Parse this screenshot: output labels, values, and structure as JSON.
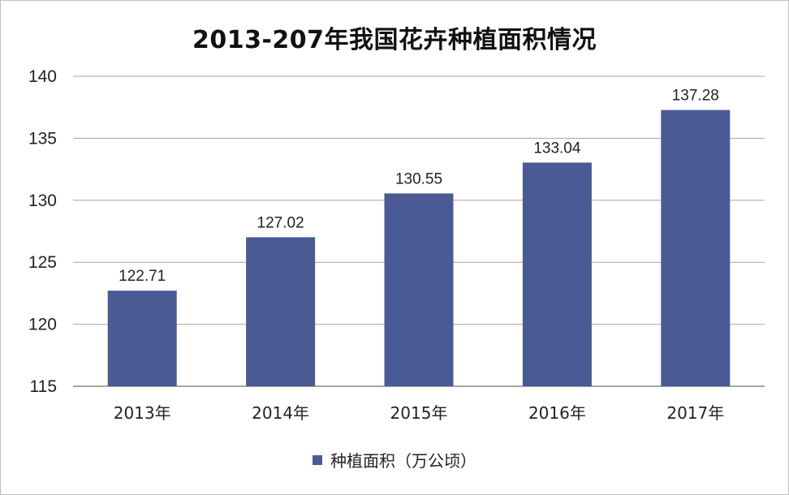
{
  "chart_data": {
    "type": "bar",
    "title": "2013-207年我国花卉种植面积情况",
    "categories": [
      "2013年",
      "2014年",
      "2015年",
      "2016年",
      "2017年"
    ],
    "series": [
      {
        "name": "种植面积（万公顷）",
        "values": [
          122.71,
          127.02,
          130.55,
          133.04,
          137.28
        ]
      }
    ],
    "data_labels": [
      "122.71",
      "127.02",
      "130.55",
      "133.04",
      "137.28"
    ],
    "ylim": [
      115,
      140
    ],
    "yticks": [
      "115",
      "120",
      "125",
      "130",
      "135",
      "140"
    ],
    "ytick_values": [
      115,
      120,
      125,
      130,
      135,
      140
    ],
    "xlabel": "",
    "ylabel": "",
    "grid": true,
    "legend_position": "bottom",
    "bar_color": "#4a5a94"
  }
}
